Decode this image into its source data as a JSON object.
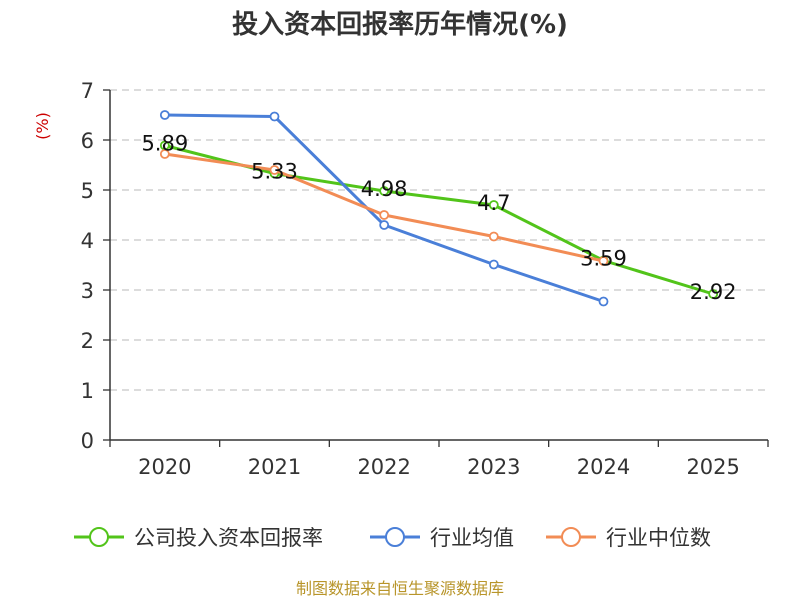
{
  "chart_data": {
    "type": "line",
    "title": "投入资本回报率历年情况(%)",
    "ylabel": "(%)",
    "categories": [
      "2020",
      "2021",
      "2022",
      "2023",
      "2024",
      "2025"
    ],
    "ylim": [
      0,
      7
    ],
    "yticks": [
      "0",
      "1",
      "2",
      "3",
      "4",
      "5",
      "6",
      "7"
    ],
    "grid": true,
    "legend_position": "bottom",
    "series": [
      {
        "name": "公司投入资本回报率",
        "color": "#52c41a",
        "values": [
          5.89,
          5.33,
          4.98,
          4.7,
          3.59,
          2.92
        ],
        "labels": [
          "5.89",
          "5.33",
          "4.98",
          "4.7",
          "3.59",
          "2.92"
        ]
      },
      {
        "name": "行业均值",
        "color": "#4a7fd8",
        "values": [
          6.5,
          6.47,
          4.3,
          3.51,
          2.77,
          null
        ]
      },
      {
        "name": "行业中位数",
        "color": "#f28c55",
        "values": [
          5.72,
          5.4,
          4.5,
          4.07,
          3.58,
          null
        ]
      }
    ],
    "source": "制图数据来自恒生聚源数据库"
  }
}
